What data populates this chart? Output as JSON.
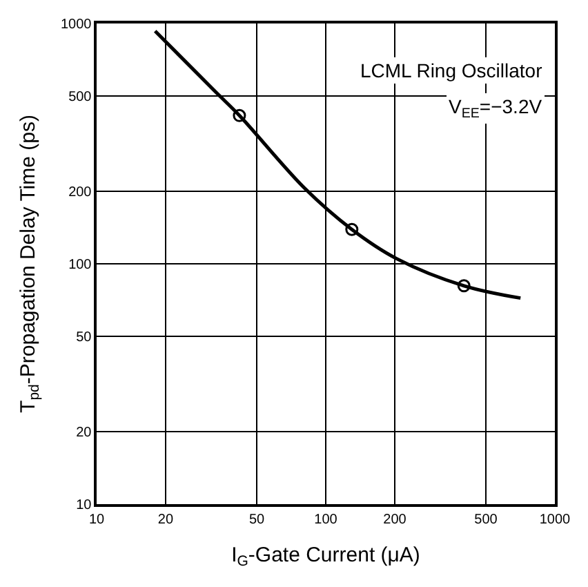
{
  "chart_data": {
    "type": "line",
    "xlabel": "I$_{G}$-Gate Current (μA)",
    "ylabel": "T$_{pd}$-Propagation Delay Time (ps)",
    "annotations": [
      "LCML Ring Oscillator",
      "V$_{EE}$=−3.2V"
    ],
    "log": "xy",
    "grid": true,
    "xlim": [
      10,
      1000
    ],
    "ylim": [
      10,
      1000
    ],
    "xticks": [
      10,
      20,
      50,
      100,
      200,
      500,
      1000
    ],
    "yticks": [
      10,
      20,
      50,
      100,
      200,
      500,
      1000
    ],
    "series": [
      {
        "color": "#000000",
        "marker": "none",
        "line_style": "solid",
        "x": [
          18,
          33,
          42,
          81,
          130,
          204,
          401,
          708
        ],
        "values": [
          930,
          520,
          414,
          206,
          139,
          105,
          81,
          72
        ]
      },
      {
        "type": "scatter",
        "color": "#000000",
        "marker": "circle",
        "x": [
          42,
          130,
          401
        ],
        "values": [
          414,
          139,
          81
        ]
      }
    ]
  }
}
